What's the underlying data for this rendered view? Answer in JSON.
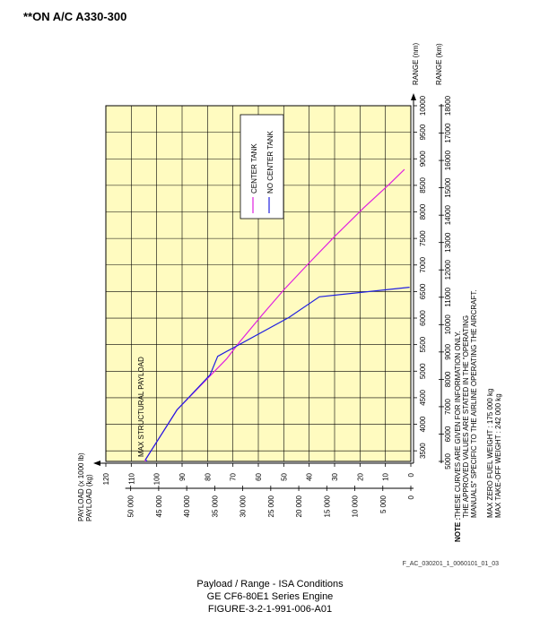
{
  "page": {
    "header": "**ON A/C A330-300",
    "reference": "F_AC_030201_1_0060101_01_03",
    "caption": [
      "Payload / Range - ISA Conditions",
      "GE CF6-80E1 Series Engine",
      "FIGURE-3-2-1-991-006-A01"
    ]
  },
  "chart_data": {
    "type": "line",
    "title": "Payload / Range - ISA Conditions",
    "x_axis": {
      "label_nm": "RANGE (nm)",
      "label_km": "RANGE (km)",
      "ticks_nm": [
        3500,
        4000,
        4500,
        5000,
        5500,
        6000,
        6500,
        7000,
        7500,
        8000,
        8500,
        9000,
        9500,
        10000
      ],
      "ticks_km": [
        5000,
        6000,
        7000,
        8000,
        9000,
        10000,
        11000,
        12000,
        13000,
        14000,
        15000,
        16000,
        17000,
        18000
      ],
      "range_nm": [
        3300,
        10000
      ]
    },
    "y_axis": {
      "label_1000lb": "PAYLOAD (x 1000 lb)",
      "label_kg": "PAYLOAD (kg)",
      "ticks_1000lb": [
        0,
        10,
        20,
        30,
        40,
        50,
        60,
        70,
        80,
        90,
        100,
        110,
        120
      ],
      "ticks_kg": [
        0,
        5000,
        10000,
        15000,
        20000,
        25000,
        30000,
        35000,
        40000,
        45000,
        50000
      ],
      "ticks_kg_labels": [
        "0",
        "5 000",
        "10 000",
        "15 000",
        "20 000",
        "25 000",
        "30 000",
        "35 000",
        "40 000",
        "45 000",
        "50 000"
      ],
      "range_1000lb": [
        0,
        120
      ]
    },
    "series": [
      {
        "name": "CENTER TANK",
        "color": "#e020e0",
        "points": [
          [
            3325,
            104.5
          ],
          [
            3325,
            104.5
          ],
          [
            3590,
            101
          ],
          [
            4270,
            92
          ],
          [
            5230,
            72.5
          ],
          [
            5560,
            67.2
          ],
          [
            6070,
            58.3
          ],
          [
            6530,
            50
          ],
          [
            7040,
            40
          ],
          [
            7560,
            29.5
          ],
          [
            8080,
            18.5
          ],
          [
            8520,
            8.5
          ],
          [
            8800,
            2.5
          ]
        ]
      },
      {
        "name": "NO CENTER TANK",
        "color": "#2020e0",
        "points": [
          [
            3325,
            104.5
          ],
          [
            3590,
            101
          ],
          [
            4270,
            92
          ],
          [
            4930,
            79
          ],
          [
            5280,
            76
          ],
          [
            6010,
            48
          ],
          [
            6400,
            36
          ],
          [
            6580,
            0.5
          ]
        ]
      }
    ],
    "vertical_segment": {
      "x_nm": 3325,
      "y_from": 104.5,
      "y_to": 120
    },
    "annotations": {
      "max_structural_payload": "MAX STRUCTURAL PAYLOAD",
      "note_label": "NOTE :",
      "note_lines": [
        "THESE CURVES ARE GIVEN FOR INFORMATION ONLY.",
        "THE APPROVED VALUES ARE STATED IN THE \"OPERATING",
        "MANUALS\" SPECIFIC TO THE AIRLINE OPERATING THE AIRCRAFT.",
        "",
        "MAX ZERO FUEL WEIGHT : 175 000 kg",
        "MAX TAKE-OFF WEIGHT : 242 000 kg"
      ]
    },
    "legend": {
      "placement": "top",
      "entries": [
        "CENTER TANK",
        "NO CENTER TANK"
      ]
    },
    "grid": true,
    "background_color": "#fffbc0"
  }
}
